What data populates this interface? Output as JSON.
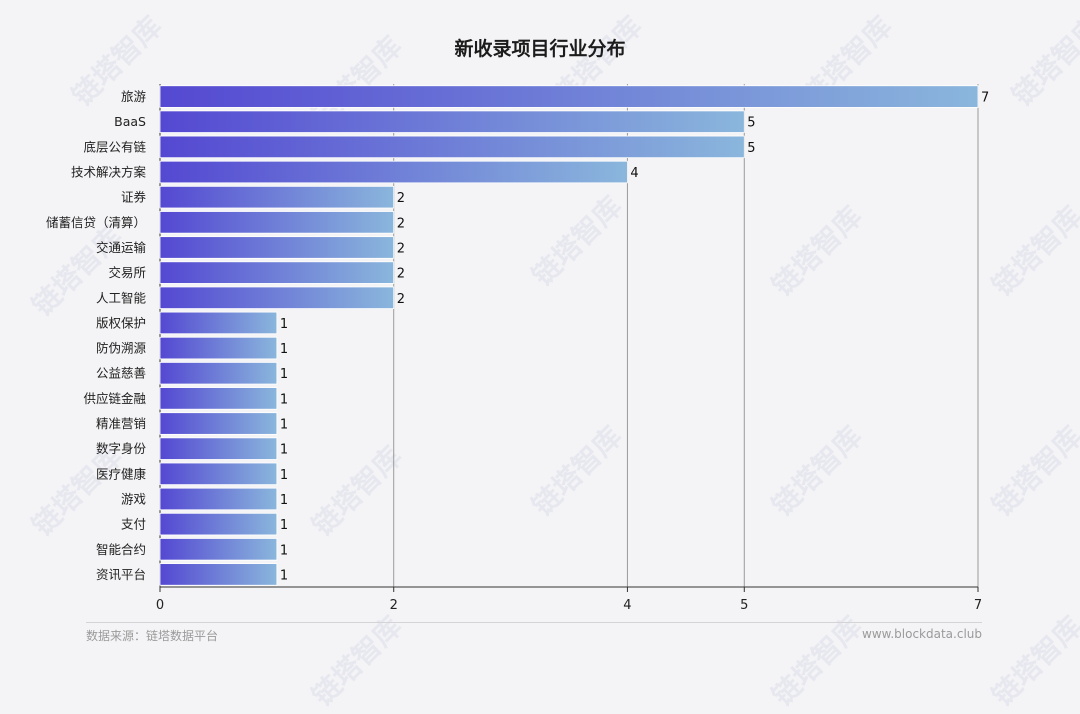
{
  "header": {
    "title": "新收录项目行业分布"
  },
  "footer": {
    "source": "数据来源：链塔数据平台",
    "site": "www.blockdata.club"
  },
  "watermark": {
    "text": "链塔智库"
  },
  "colors": {
    "bar_start": "#5448d2",
    "bar_end": "#8ab6dc",
    "grid": "#9a9a9a",
    "axis": "#333333",
    "background": "#f4f4f6"
  },
  "chart_data": {
    "type": "bar",
    "orientation": "horizontal",
    "title": "新收录项目行业分布",
    "categories": [
      "旅游",
      "BaaS",
      "底层公有链",
      "技术解决方案",
      "证券",
      "储蓄信贷（清算）",
      "交通运输",
      "交易所",
      "人工智能",
      "版权保护",
      "防伪溯源",
      "公益慈善",
      "供应链金融",
      "精准营销",
      "数字身份",
      "医疗健康",
      "游戏",
      "支付",
      "智能合约",
      "资讯平台"
    ],
    "values": [
      7,
      5,
      5,
      4,
      2,
      2,
      2,
      2,
      2,
      1,
      1,
      1,
      1,
      1,
      1,
      1,
      1,
      1,
      1,
      1
    ],
    "xlim": [
      0,
      7
    ],
    "xticks": [
      0,
      2,
      4,
      5,
      7
    ],
    "grid": true,
    "legend": "none"
  }
}
